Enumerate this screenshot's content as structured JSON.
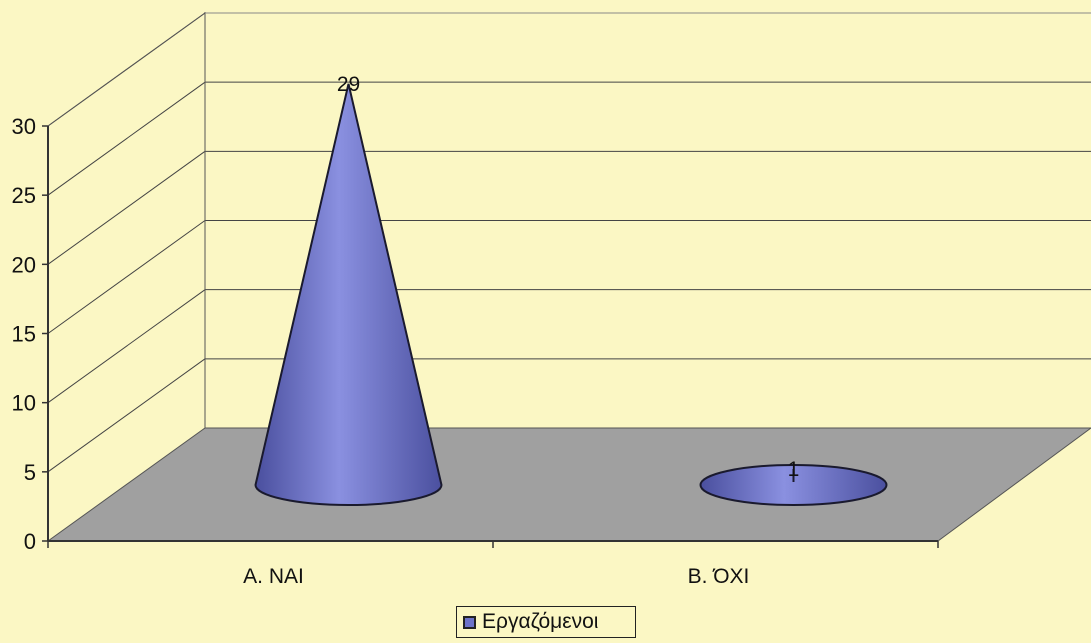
{
  "chart_data": {
    "type": "bar",
    "style": "3d-cone",
    "categories": [
      "A. ΝΑΙ",
      "Β. ΌΧΙ"
    ],
    "series": [
      {
        "name": "Εργαζόμενοι",
        "values": [
          29,
          1
        ]
      }
    ],
    "data_labels": [
      "29",
      "1"
    ],
    "y_ticks": [
      "0",
      "5",
      "10",
      "15",
      "20",
      "25",
      "30"
    ],
    "ylim": [
      0,
      30
    ],
    "grid": true,
    "legend": "bottom-center",
    "colors": {
      "series": "#6c72c8",
      "series_edge": "#1a1a2e",
      "floor": "#a0a0a0",
      "wall": "#fbf7c4",
      "axis": "#333333"
    }
  }
}
